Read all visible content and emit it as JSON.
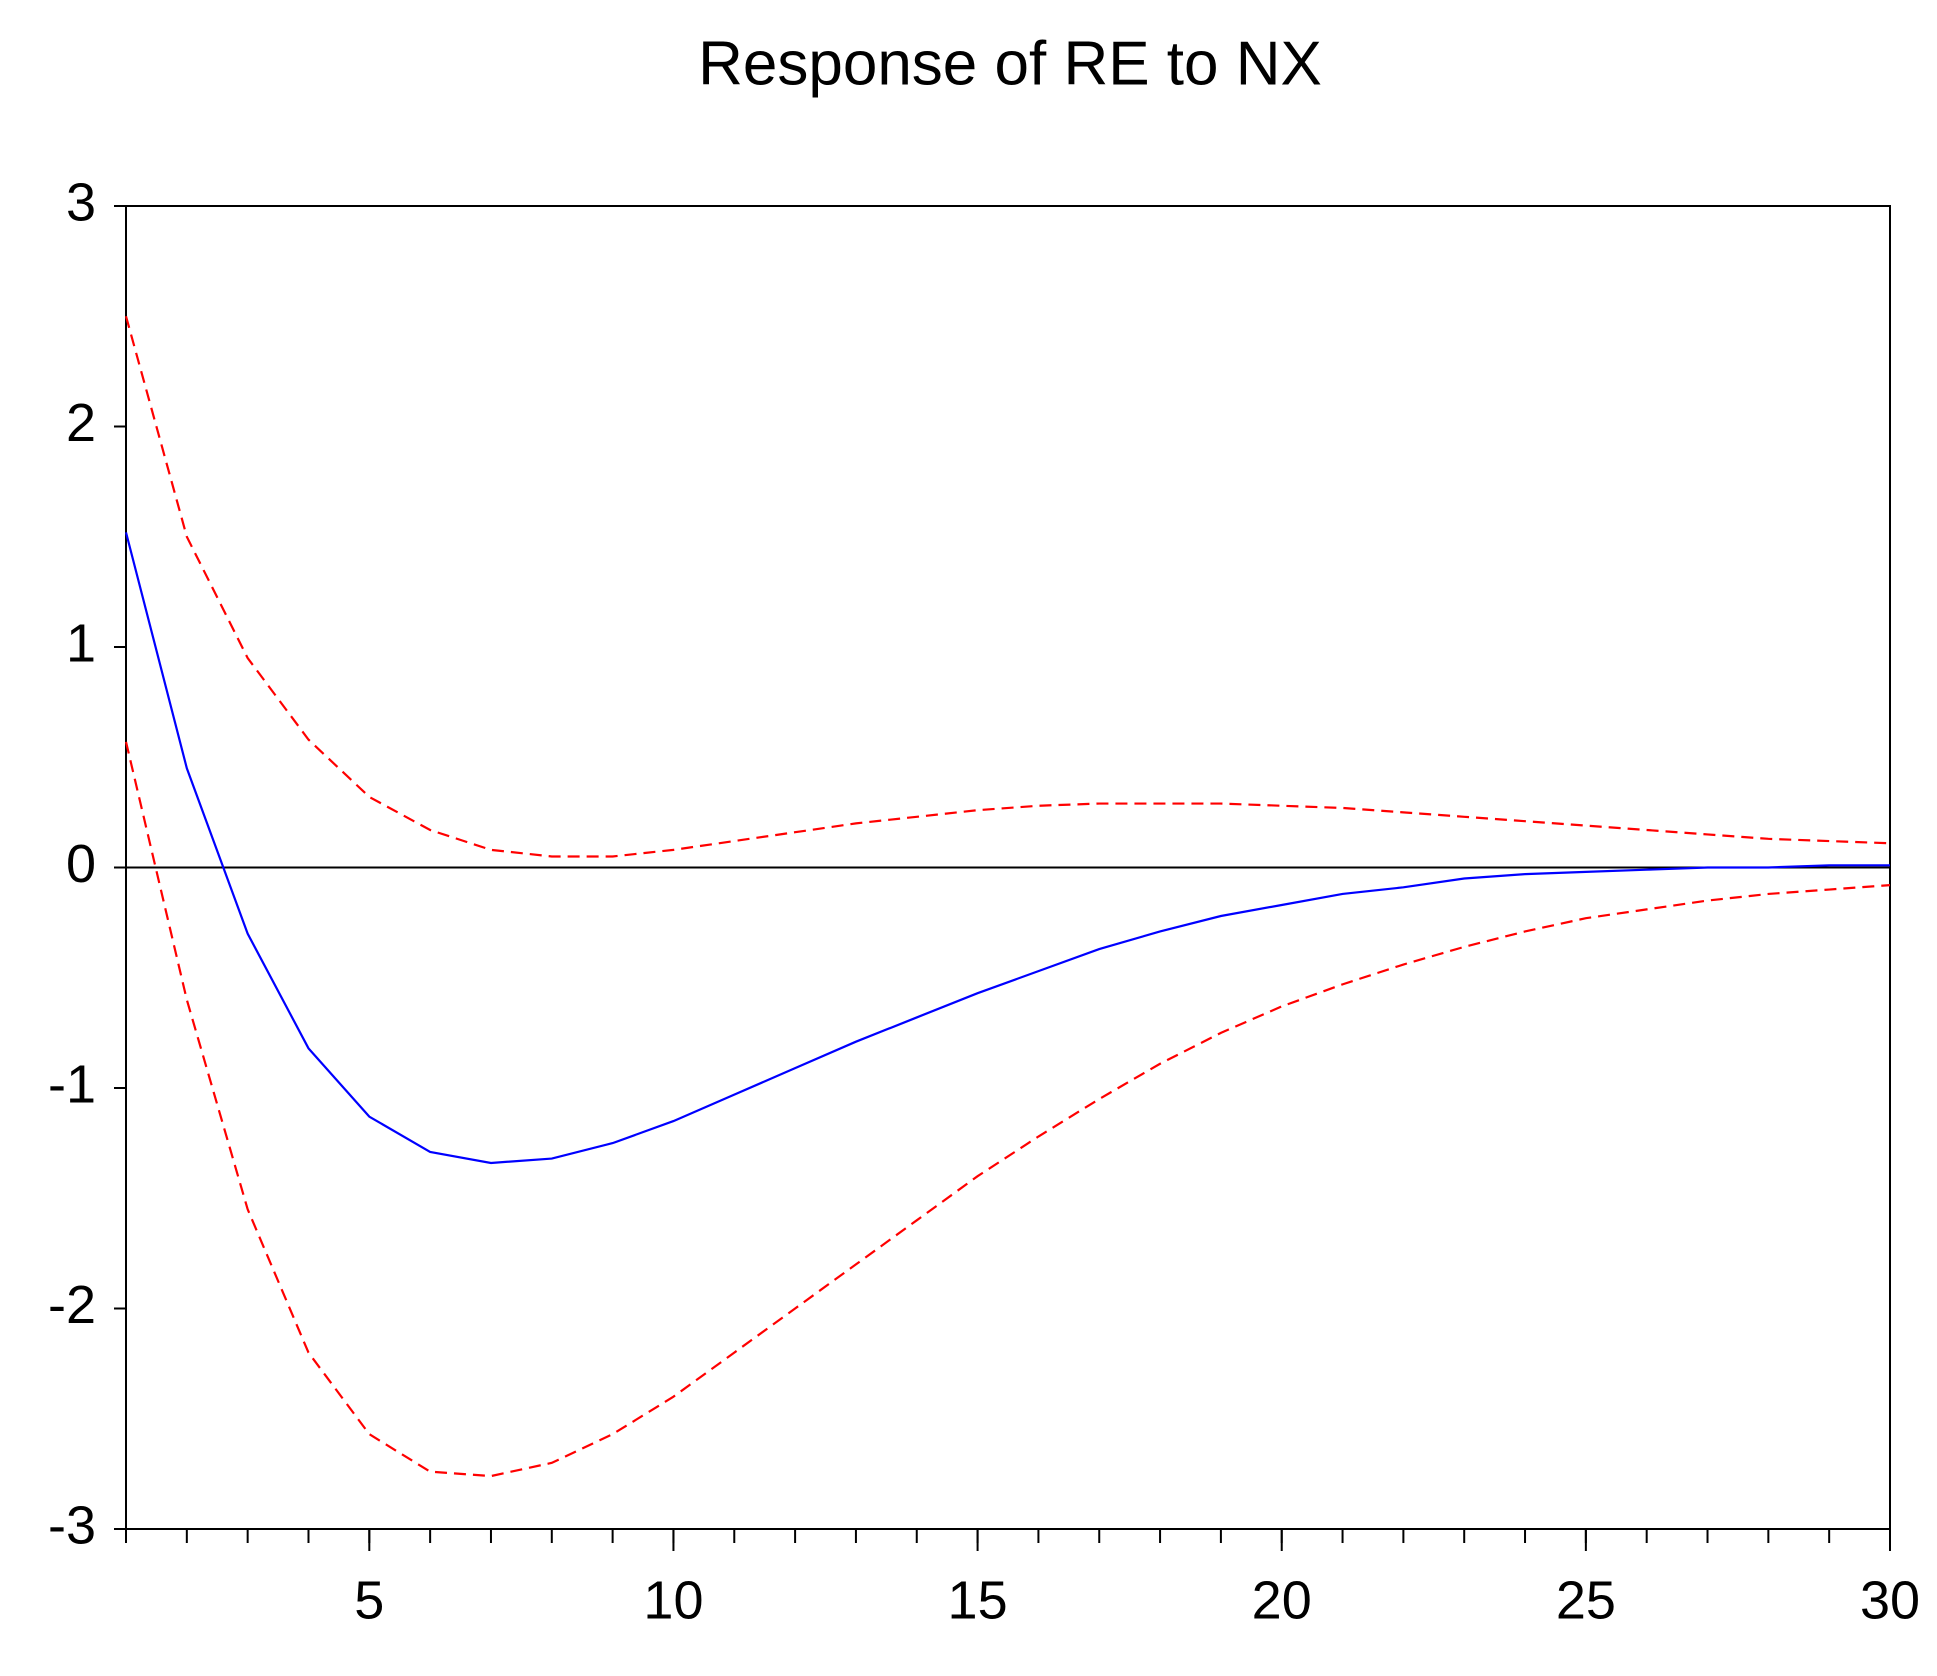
{
  "chart_data": {
    "type": "line",
    "title": "Response of RE to NX",
    "x": [
      1,
      2,
      3,
      4,
      5,
      6,
      7,
      8,
      9,
      10,
      11,
      12,
      13,
      14,
      15,
      16,
      17,
      18,
      19,
      20,
      21,
      22,
      23,
      24,
      25,
      26,
      27,
      28,
      29,
      30
    ],
    "xlim": [
      1,
      30
    ],
    "xticks": [
      5,
      10,
      15,
      20,
      25,
      30
    ],
    "ylim": [
      -3,
      3
    ],
    "yticks": [
      3,
      2,
      1,
      0,
      -1,
      -2,
      -3
    ],
    "series": [
      {
        "color": "#0000ff",
        "style": "solid",
        "values": [
          1.52,
          0.45,
          -0.3,
          -0.82,
          -1.13,
          -1.29,
          -1.34,
          -1.32,
          -1.25,
          -1.15,
          -1.03,
          -0.91,
          -0.79,
          -0.68,
          -0.57,
          -0.47,
          -0.37,
          -0.29,
          -0.22,
          -0.17,
          -0.12,
          -0.09,
          -0.05,
          -0.03,
          -0.02,
          -0.01,
          0,
          0,
          0.01,
          0.01
        ]
      },
      {
        "color": "#ff0000",
        "style": "dashed",
        "values": [
          2.5,
          1.5,
          0.95,
          0.58,
          0.32,
          0.17,
          0.08,
          0.05,
          0.05,
          0.08,
          0.12,
          0.16,
          0.2,
          0.23,
          0.26,
          0.28,
          0.29,
          0.29,
          0.29,
          0.28,
          0.27,
          0.25,
          0.23,
          0.21,
          0.19,
          0.17,
          0.15,
          0.13,
          0.12,
          0.11
        ]
      },
      {
        "color": "#ff0000",
        "style": "dashed",
        "values": [
          0.57,
          -0.6,
          -1.55,
          -2.2,
          -2.57,
          -2.74,
          -2.76,
          -2.7,
          -2.57,
          -2.4,
          -2.2,
          -2.0,
          -1.8,
          -1.6,
          -1.4,
          -1.22,
          -1.05,
          -0.89,
          -0.75,
          -0.63,
          -0.53,
          -0.44,
          -0.36,
          -0.29,
          -0.23,
          -0.19,
          -0.15,
          -0.12,
          -0.1,
          -0.08
        ]
      }
    ]
  }
}
